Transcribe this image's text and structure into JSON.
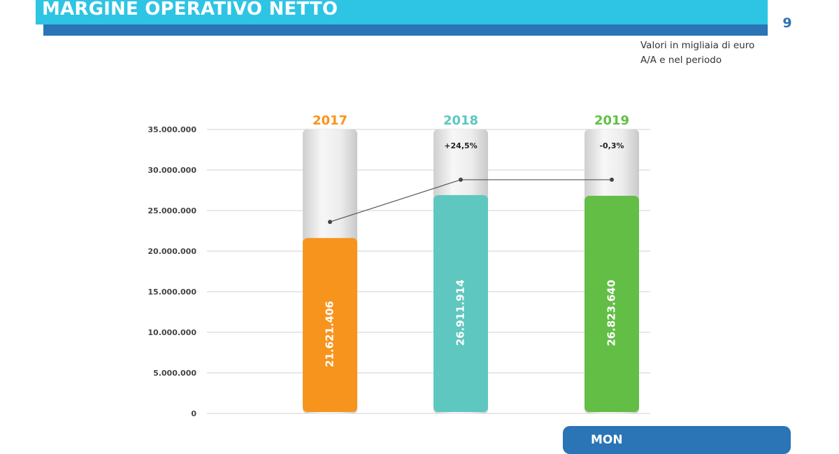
{
  "page": {
    "title": "MARGINE OPERATIVO NETTO",
    "page_number": "9",
    "unit_lines": [
      "Valori in migliaia di euro",
      "A/A e nel periodo"
    ],
    "badge": {
      "label": "MON",
      "sub": ""
    }
  },
  "colors": {
    "banner": "#2ec4e4",
    "strip": "#2b74b5",
    "bar_2017": "#f7941d",
    "bar_2018": "#5ec7bf",
    "bar_2019": "#62be45"
  },
  "chart_data": {
    "type": "bar",
    "categories": [
      "2017",
      "2018",
      "2019"
    ],
    "values": [
      21621406,
      26911914,
      26823640
    ],
    "value_labels": [
      "21.621.406",
      "26.911.914",
      "26.823.640"
    ],
    "bar_colors": [
      "#f7941d",
      "#5ec7bf",
      "#62be45"
    ],
    "yoy_change": [
      null,
      "+24,5%",
      "-0,3%"
    ],
    "line_values": [
      23600000,
      28800000,
      28800000
    ],
    "ylim": [
      0,
      35000000
    ],
    "y_ticks": [
      0,
      5000000,
      10000000,
      15000000,
      20000000,
      25000000,
      30000000,
      35000000
    ],
    "y_tick_labels": [
      "0",
      "5.000.000",
      "10.000.000",
      "15.000.000",
      "20.000.000",
      "25.000.000",
      "30.000.000",
      "35.000.000"
    ],
    "grid": true,
    "title": "",
    "xlabel": "",
    "ylabel": ""
  }
}
